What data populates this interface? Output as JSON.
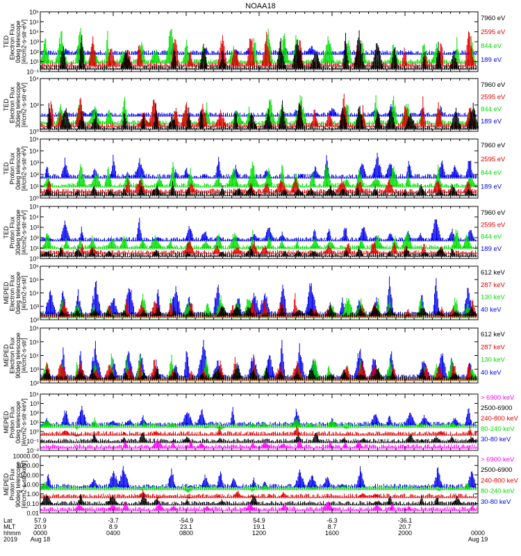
{
  "title": "NOAA18",
  "colors": {
    "black": "#000000",
    "red": "#e00000",
    "green": "#00dd00",
    "blue": "#0000ee",
    "magenta": "#ff00ff"
  },
  "chart_data": [
    {
      "type": "line",
      "panel": "TED electron 0deg",
      "ylabel": [
        "TED",
        "Electron Flux",
        "0deg telescope",
        "[#/cm2-s-str-eV]"
      ],
      "y_ticks": [
        "10⁻¹",
        "10¹",
        "10²",
        "10³",
        "10⁴",
        "10⁵",
        "10⁶"
      ],
      "legend": [
        {
          "label": "7960 eV",
          "color": "black"
        },
        {
          "label": "2595 eV",
          "color": "red"
        },
        {
          "label": "844 eV",
          "color": "green"
        },
        {
          "label": "189 eV",
          "color": "blue"
        }
      ]
    },
    {
      "type": "line",
      "panel": "TED electron 30deg",
      "ylabel": [
        "TED",
        "Electron Flux",
        "30deg telescope",
        "[#/cm2-s-str-eV]"
      ],
      "y_ticks": [
        "10⁰",
        "10²",
        "10⁴"
      ],
      "legend": [
        {
          "label": "7960 eV",
          "color": "black"
        },
        {
          "label": "2595 eV",
          "color": "red"
        },
        {
          "label": "844 eV",
          "color": "green"
        },
        {
          "label": "189 eV",
          "color": "blue"
        }
      ]
    },
    {
      "type": "line",
      "panel": "TED proton 0deg",
      "ylabel": [
        "TED",
        "Proton Flux",
        "0deg telescope",
        "[#/cm2-s-str-eV]"
      ],
      "y_ticks": [
        "10⁰",
        "10¹",
        "10²",
        "10³",
        "10⁴",
        "10⁵"
      ],
      "legend": [
        {
          "label": "7960 eV",
          "color": "black"
        },
        {
          "label": "2595 eV",
          "color": "red"
        },
        {
          "label": "844 eV",
          "color": "green"
        },
        {
          "label": "189 eV",
          "color": "blue"
        }
      ]
    },
    {
      "type": "line",
      "panel": "TED proton 30deg",
      "ylabel": [
        "TED",
        "Proton Flux",
        "30deg telescope",
        "[#/cm2-s-str-eV]"
      ],
      "y_ticks": [
        "10⁰",
        "10¹",
        "10²",
        "10³",
        "10⁴",
        "10⁵"
      ],
      "legend": [
        {
          "label": "7960 eV",
          "color": "black"
        },
        {
          "label": "2595 eV",
          "color": "red"
        },
        {
          "label": "844 eV",
          "color": "green"
        },
        {
          "label": "189 eV",
          "color": "blue"
        }
      ]
    },
    {
      "type": "line",
      "panel": "MEPED electron 0deg",
      "ylabel": [
        "MEPED",
        "Electron Flux",
        "0deg telescope",
        "[#/cm2-s-str]"
      ],
      "y_ticks": [
        "10²",
        "10³",
        "10⁴",
        "10⁵",
        "10⁶"
      ],
      "legend": [
        {
          "label": "612 keV",
          "color": "black"
        },
        {
          "label": "287 keV",
          "color": "red"
        },
        {
          "label": "130 keV",
          "color": "green"
        },
        {
          "label": "40 keV",
          "color": "blue"
        }
      ]
    },
    {
      "type": "line",
      "panel": "MEPED electron 90deg",
      "ylabel": [
        "MEPED",
        "Electron Flux",
        "90deg telescope",
        "[#/cm2-s-str]"
      ],
      "y_ticks": [
        "10²",
        "10³",
        "10⁴",
        "10⁵",
        "10⁶"
      ],
      "legend": [
        {
          "label": "612 keV",
          "color": "black"
        },
        {
          "label": "287 keV",
          "color": "red"
        },
        {
          "label": "130 keV",
          "color": "green"
        },
        {
          "label": "40 keV",
          "color": "blue"
        }
      ]
    },
    {
      "type": "line",
      "panel": "MEPED proton 0deg",
      "ylabel": [
        "MEPED",
        "Proton Flux",
        "0deg telescope",
        "[#/cm2-s-str-keV]"
      ],
      "y_ticks": [
        "10⁻²",
        "10⁻¹",
        "10⁰",
        "10¹",
        "10²",
        "10³",
        "10⁴"
      ],
      "legend": [
        {
          "label": "> 6900 keV",
          "color": "magenta"
        },
        {
          "label": "2500-6900",
          "color": "black"
        },
        {
          "label": "240-800 keV",
          "color": "red"
        },
        {
          "label": "80-240 keV",
          "color": "green"
        },
        {
          "label": "30-80 keV",
          "color": "blue"
        }
      ]
    },
    {
      "type": "line",
      "panel": "MEPED proton 90deg",
      "ylabel": [
        "MEPED",
        "Proton Flux",
        "90deg telescope",
        "[#/cm2-s-str-keV]"
      ],
      "y_ticks": [
        "0.01",
        "0.10",
        "1.00",
        "10.00",
        "100.00",
        "1000.00",
        "10000.00"
      ],
      "legend": [
        {
          "label": "> 6900 keV",
          "color": "magenta"
        },
        {
          "label": "2500-6900",
          "color": "black"
        },
        {
          "label": "240-800 keV",
          "color": "red"
        },
        {
          "label": "80-240 keV",
          "color": "green"
        },
        {
          "label": "30-80 keV",
          "color": "blue"
        }
      ]
    }
  ],
  "x_axis": {
    "row_labels": [
      "Lat",
      "MLT",
      "hhmm",
      "2019"
    ],
    "columns": [
      {
        "lat": "57.9",
        "mlt": "20.9",
        "hhmm": "0000",
        "date": "Aug 18"
      },
      {
        "lat": "-3.7",
        "mlt": "8.9",
        "hhmm": "0400",
        "date": ""
      },
      {
        "lat": "-54.9",
        "mlt": "23.1",
        "hhmm": "0800",
        "date": ""
      },
      {
        "lat": "54.9",
        "mlt": "19.1",
        "hhmm": "1200",
        "date": ""
      },
      {
        "lat": "-6.3",
        "mlt": "8.7",
        "hhmm": "1600",
        "date": ""
      },
      {
        "lat": "-36.1",
        "mlt": "20.7",
        "hhmm": "2000",
        "date": ""
      },
      {
        "lat": "",
        "mlt": "",
        "hhmm": "0000",
        "date": "Aug 19"
      }
    ]
  }
}
